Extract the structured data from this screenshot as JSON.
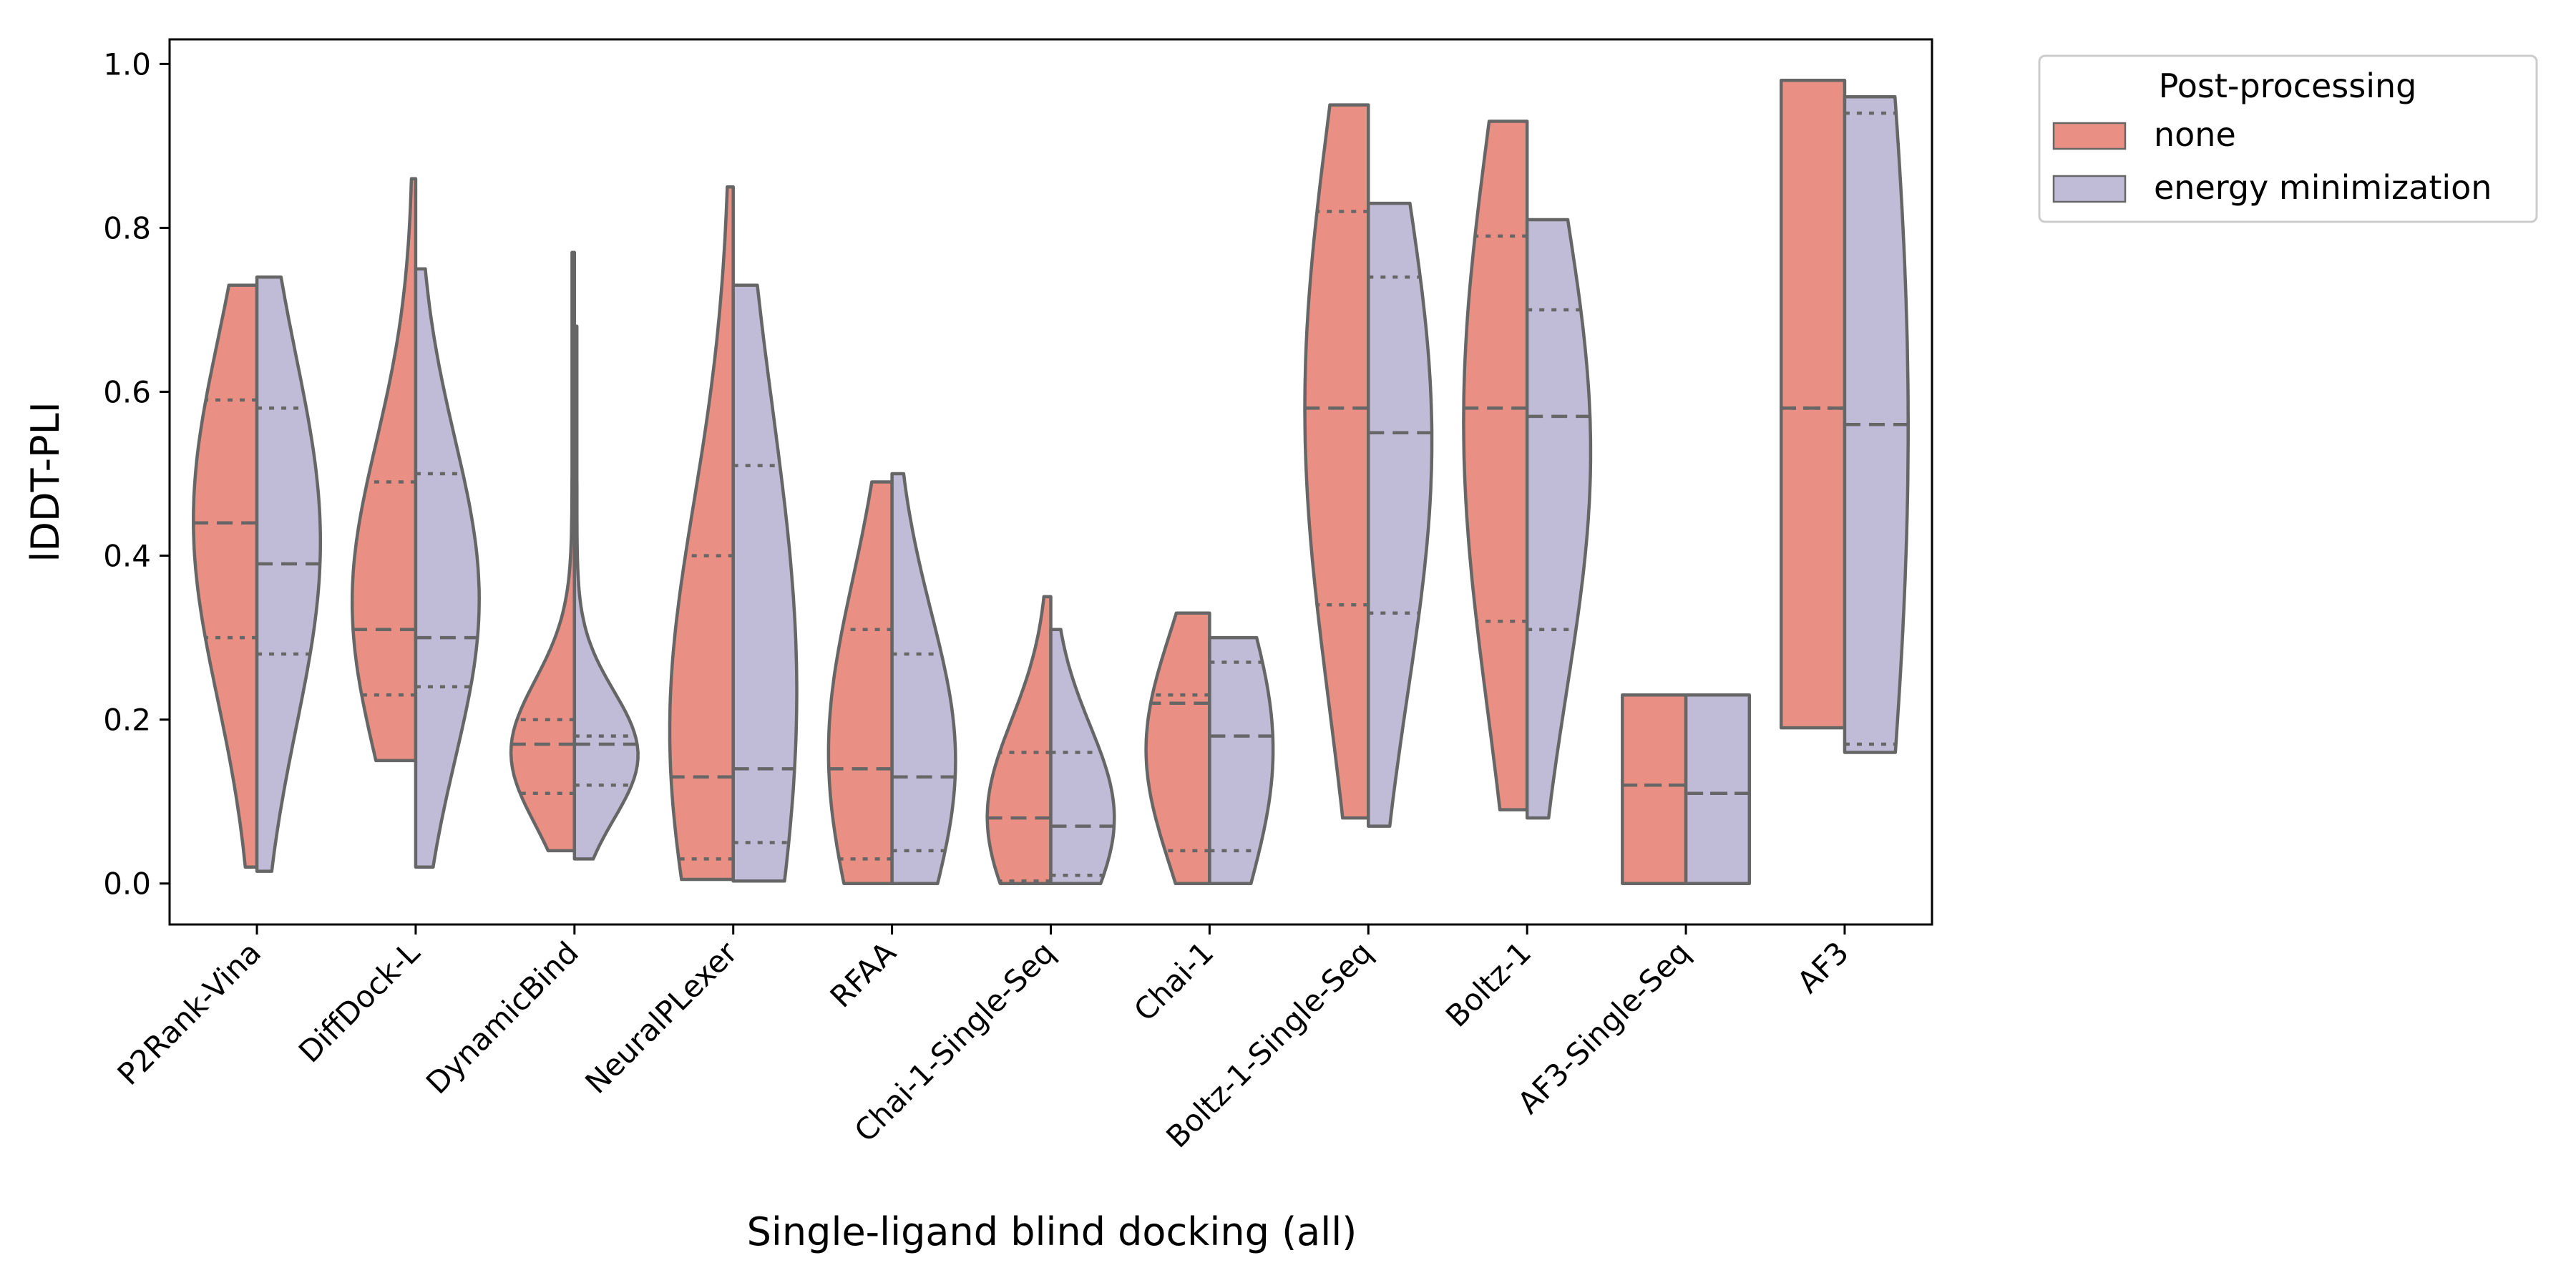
{
  "chart_data": {
    "type": "violin",
    "title": "",
    "xlabel": "Single-ligand blind docking (all)",
    "ylabel": "lDDT-PLI",
    "ylim": [
      -0.05,
      1.03
    ],
    "yticks": [
      0.0,
      0.2,
      0.4,
      0.6,
      0.8,
      1.0
    ],
    "ytick_labels": [
      "0.0",
      "0.2",
      "0.4",
      "0.6",
      "0.8",
      "1.0"
    ],
    "grid": false,
    "split": true,
    "inner": "quartile",
    "cut": 0,
    "legend": {
      "title": "Post-processing",
      "placement": "outside-top-right",
      "entries": [
        "none",
        "energy minimization"
      ]
    },
    "categories": [
      "P2Rank-Vina",
      "DiffDock-L",
      "DynamicBind",
      "NeuralPLexer",
      "RFAA",
      "Chai-1-Single-Seq",
      "Chai-1",
      "Boltz-1-Single-Seq",
      "Boltz-1",
      "AF3-Single-Seq",
      "AF3"
    ],
    "series": [
      {
        "name": "none",
        "color": "#EA8F83",
        "stats": [
          {
            "min": 0.02,
            "max": 0.73,
            "q1": 0.3,
            "median": 0.44,
            "q3": 0.59
          },
          {
            "min": 0.15,
            "max": 0.86,
            "q1": 0.23,
            "median": 0.31,
            "q3": 0.49
          },
          {
            "min": 0.04,
            "max": 0.77,
            "q1": 0.11,
            "median": 0.17,
            "q3": 0.2
          },
          {
            "min": 0.005,
            "max": 0.85,
            "q1": 0.03,
            "median": 0.13,
            "q3": 0.4
          },
          {
            "min": 0.0,
            "max": 0.49,
            "q1": 0.03,
            "median": 0.14,
            "q3": 0.31
          },
          {
            "min": 0.0,
            "max": 0.35,
            "q1": 0.003,
            "median": 0.08,
            "q3": 0.16
          },
          {
            "min": 0.0,
            "max": 0.33,
            "q1": 0.04,
            "median": 0.22,
            "q3": 0.23
          },
          {
            "min": 0.08,
            "max": 0.95,
            "q1": 0.34,
            "median": 0.58,
            "q3": 0.82
          },
          {
            "min": 0.09,
            "max": 0.93,
            "q1": 0.32,
            "median": 0.58,
            "q3": 0.79
          },
          {
            "min": 0.0,
            "max": 0.23,
            "q1": 0.12,
            "median": 0.12,
            "q3": 0.12
          },
          {
            "min": 0.19,
            "max": 0.98,
            "q1": 0.58,
            "median": 0.58,
            "q3": 0.58
          }
        ]
      },
      {
        "name": "energy minimization",
        "color": "#C0BCD7",
        "stats": [
          {
            "min": 0.015,
            "max": 0.74,
            "q1": 0.28,
            "median": 0.39,
            "q3": 0.58
          },
          {
            "min": 0.02,
            "max": 0.75,
            "q1": 0.24,
            "median": 0.3,
            "q3": 0.5
          },
          {
            "min": 0.03,
            "max": 0.68,
            "q1": 0.12,
            "median": 0.17,
            "q3": 0.18
          },
          {
            "min": 0.003,
            "max": 0.73,
            "q1": 0.05,
            "median": 0.14,
            "q3": 0.51
          },
          {
            "min": 0.0,
            "max": 0.5,
            "q1": 0.04,
            "median": 0.13,
            "q3": 0.28
          },
          {
            "min": 0.0,
            "max": 0.31,
            "q1": 0.01,
            "median": 0.07,
            "q3": 0.16
          },
          {
            "min": 0.0,
            "max": 0.3,
            "q1": 0.04,
            "median": 0.18,
            "q3": 0.27
          },
          {
            "min": 0.07,
            "max": 0.83,
            "q1": 0.33,
            "median": 0.55,
            "q3": 0.74
          },
          {
            "min": 0.08,
            "max": 0.81,
            "q1": 0.31,
            "median": 0.57,
            "q3": 0.7
          },
          {
            "min": 0.0,
            "max": 0.23,
            "q1": 0.11,
            "median": 0.11,
            "q3": 0.11
          },
          {
            "min": 0.16,
            "max": 0.96,
            "q1": 0.17,
            "median": 0.56,
            "q3": 0.94
          }
        ]
      }
    ]
  }
}
